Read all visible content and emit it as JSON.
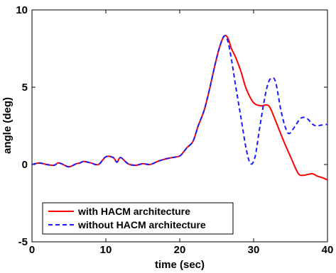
{
  "chart_data": {
    "type": "line",
    "title": "",
    "xlabel": "time (sec)",
    "ylabel": "angle (deg)",
    "xlim": [
      0,
      40
    ],
    "ylim": [
      -5,
      10
    ],
    "xticks": [
      0,
      10,
      20,
      30,
      40
    ],
    "yticks": [
      -5,
      0,
      5,
      10
    ],
    "grid": false,
    "legend_position": "lower-left",
    "series": [
      {
        "name": "with HACM architecture",
        "color": "#ff0000",
        "dash": "solid",
        "points": [
          [
            0,
            0
          ],
          [
            1,
            0.1
          ],
          [
            2,
            0
          ],
          [
            3,
            -0.05
          ],
          [
            3.5,
            0.1
          ],
          [
            4,
            0.05
          ],
          [
            5,
            -0.15
          ],
          [
            6,
            0.05
          ],
          [
            6.5,
            0.1
          ],
          [
            7,
            0.2
          ],
          [
            8,
            0.1
          ],
          [
            9,
            0
          ],
          [
            10,
            0.5
          ],
          [
            11,
            0.45
          ],
          [
            11.5,
            0.15
          ],
          [
            12,
            0.45
          ],
          [
            13,
            0.05
          ],
          [
            14,
            -0.05
          ],
          [
            15,
            0.05
          ],
          [
            16,
            0
          ],
          [
            17,
            0.2
          ],
          [
            18,
            0.35
          ],
          [
            19,
            0.45
          ],
          [
            20,
            0.55
          ],
          [
            20.5,
            0.8
          ],
          [
            21,
            1.1
          ],
          [
            21.8,
            1.5
          ],
          [
            22.5,
            2.5
          ],
          [
            23.3,
            3.5
          ],
          [
            24,
            4.8
          ],
          [
            24.8,
            6.5
          ],
          [
            25.4,
            7.6
          ],
          [
            26,
            8.3
          ],
          [
            26.5,
            8.2
          ],
          [
            27,
            7.5
          ],
          [
            27.6,
            6.9
          ],
          [
            28.3,
            6
          ],
          [
            29,
            4.9
          ],
          [
            30,
            4
          ],
          [
            31,
            3.8
          ],
          [
            31.7,
            3.85
          ],
          [
            32.2,
            3.7
          ],
          [
            33,
            2.8
          ],
          [
            34,
            1.6
          ],
          [
            35,
            0.5
          ],
          [
            36,
            -0.55
          ],
          [
            36.6,
            -0.7
          ],
          [
            37.3,
            -0.65
          ],
          [
            38,
            -0.6
          ],
          [
            38.6,
            -0.75
          ],
          [
            39.3,
            -0.85
          ],
          [
            40,
            -1
          ]
        ]
      },
      {
        "name": "without HACM architecture",
        "color": "#1a1aff",
        "dash": "dashed",
        "points": [
          [
            0,
            0
          ],
          [
            1,
            0.1
          ],
          [
            2,
            0
          ],
          [
            3,
            -0.05
          ],
          [
            3.5,
            0.1
          ],
          [
            4,
            0.05
          ],
          [
            5,
            -0.15
          ],
          [
            6,
            0.05
          ],
          [
            6.5,
            0.1
          ],
          [
            7,
            0.2
          ],
          [
            8,
            0.1
          ],
          [
            9,
            0
          ],
          [
            10,
            0.5
          ],
          [
            11,
            0.45
          ],
          [
            11.5,
            0.15
          ],
          [
            12,
            0.45
          ],
          [
            13,
            0.05
          ],
          [
            14,
            -0.05
          ],
          [
            15,
            0.05
          ],
          [
            16,
            0
          ],
          [
            17,
            0.2
          ],
          [
            18,
            0.35
          ],
          [
            19,
            0.45
          ],
          [
            20,
            0.55
          ],
          [
            20.5,
            0.8
          ],
          [
            21,
            1.1
          ],
          [
            21.8,
            1.5
          ],
          [
            22.5,
            2.5
          ],
          [
            23.3,
            3.5
          ],
          [
            24,
            4.8
          ],
          [
            24.8,
            6.5
          ],
          [
            25.4,
            7.6
          ],
          [
            26,
            8.3
          ],
          [
            26.5,
            8
          ],
          [
            27,
            6.8
          ],
          [
            27.6,
            5
          ],
          [
            28.3,
            3
          ],
          [
            29,
            1
          ],
          [
            29.6,
            0.05
          ],
          [
            30.2,
            0.5
          ],
          [
            30.8,
            2.3
          ],
          [
            31.5,
            4.3
          ],
          [
            32,
            5.3
          ],
          [
            32.5,
            5.6
          ],
          [
            33,
            5.3
          ],
          [
            33.7,
            3.5
          ],
          [
            34.3,
            2.4
          ],
          [
            34.8,
            2
          ],
          [
            35.5,
            2.4
          ],
          [
            36.2,
            2.9
          ],
          [
            36.7,
            3.05
          ],
          [
            37.3,
            2.95
          ],
          [
            38,
            2.6
          ],
          [
            38.5,
            2.5
          ],
          [
            39.2,
            2.55
          ],
          [
            40,
            2.6
          ]
        ]
      }
    ]
  }
}
